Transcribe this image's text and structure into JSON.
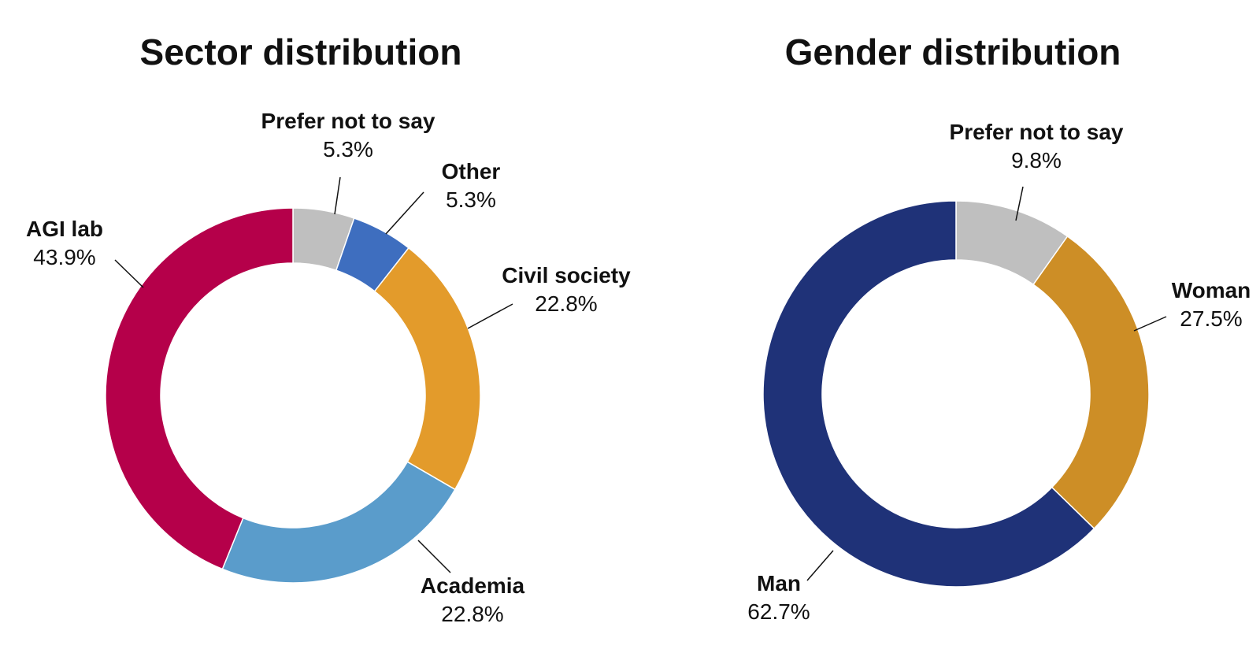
{
  "chart_data": [
    {
      "type": "pie",
      "title": "Sector distribution",
      "slices": [
        {
          "name": "Prefer not to say",
          "value": 5.3,
          "label": "5.3%",
          "color": "#bfbfbf"
        },
        {
          "name": "Other",
          "value": 5.3,
          "label": "5.3%",
          "color": "#3e6ebf"
        },
        {
          "name": "Civil society",
          "value": 22.8,
          "label": "22.8%",
          "color": "#e39b2b"
        },
        {
          "name": "Academia",
          "value": 22.8,
          "label": "22.8%",
          "color": "#5a9ccb"
        },
        {
          "name": "AGI lab",
          "value": 43.9,
          "label": "43.9%",
          "color": "#b5004a"
        }
      ]
    },
    {
      "type": "pie",
      "title": "Gender distribution",
      "slices": [
        {
          "name": "Prefer not to say",
          "value": 9.8,
          "label": "9.8%",
          "color": "#bfbfbf"
        },
        {
          "name": "Woman",
          "value": 27.5,
          "label": "27.5%",
          "color": "#cd8e26"
        },
        {
          "name": "Man",
          "value": 62.7,
          "label": "62.7%",
          "color": "#1f3278"
        }
      ]
    }
  ]
}
